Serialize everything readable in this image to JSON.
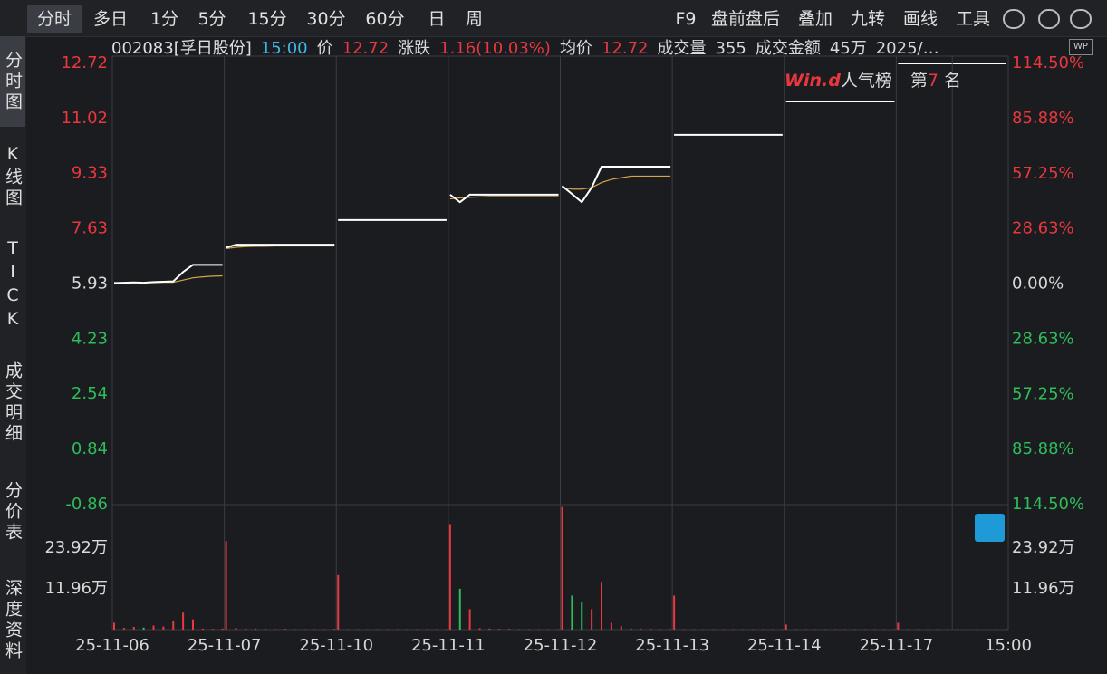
{
  "toolbar": {
    "tabs": [
      "分时",
      "多日",
      "1分",
      "5分",
      "15分",
      "30分",
      "60分",
      "日",
      "周"
    ],
    "right": [
      "F9",
      "盘前盘后",
      "叠加",
      "九转",
      "画线",
      "工具"
    ]
  },
  "side_tabs": [
    "分时图",
    "K线图",
    "TICK",
    "成交明细",
    "分价表",
    "深度资料"
  ],
  "quote": {
    "code": "002083[孚日股份]",
    "time": "15:00",
    "price_label": "价",
    "price": "12.72",
    "change_label": "涨跌",
    "change": "1.16(10.03%)",
    "avg_label": "均价",
    "avg": "12.72",
    "volume_label": "成交量",
    "volume": "355",
    "amount_label": "成交金额",
    "amount": "45万",
    "date": "2025/…"
  },
  "wp_icon": "WP",
  "ranking": {
    "logo": "Win.d",
    "label": "人气榜",
    "prefix": "第",
    "rank": "7",
    "suffix": "名"
  },
  "chart_data": {
    "type": "line",
    "ylim": [
      -0.86,
      12.72
    ],
    "yticks": [
      12.72,
      11.02,
      9.33,
      7.63,
      5.93,
      4.23,
      2.54,
      0.84,
      -0.86
    ],
    "y2lim": [
      -114.5,
      114.5
    ],
    "y2ticks": [
      {
        "value": 114.5,
        "label": "114.50%"
      },
      {
        "value": 85.88,
        "label": "85.88%"
      },
      {
        "value": 57.25,
        "label": "57.25%"
      },
      {
        "value": 28.63,
        "label": "28.63%"
      },
      {
        "value": 0,
        "label": "0.00%"
      },
      {
        "value": -28.63,
        "label": "28.63%"
      },
      {
        "value": -57.25,
        "label": "57.25%"
      },
      {
        "value": -85.88,
        "label": "85.88%"
      },
      {
        "value": -114.5,
        "label": "114.50%"
      }
    ],
    "vol_lim": [
      0,
      36.7
    ],
    "vol_ticks": [
      {
        "value": 23.92,
        "label": "23.92万"
      },
      {
        "value": 11.96,
        "label": "11.96万"
      }
    ],
    "categories": [
      "25-11-06",
      "25-11-07",
      "25-11-10",
      "25-11-11",
      "25-11-12",
      "25-11-13",
      "25-11-14",
      "25-11-17"
    ],
    "end_label": "15:00",
    "price_color": "#ffffff",
    "avg_color": "#d4a64a",
    "up_color": "#e8383d",
    "down_color": "#2ebd5a",
    "days": [
      {
        "price": [
          5.96,
          5.97,
          5.98,
          5.97,
          5.99,
          6.0,
          6.01,
          6.3,
          6.52,
          6.52,
          6.52,
          6.52
        ],
        "avg": [
          5.96,
          5.96,
          5.97,
          5.97,
          5.97,
          5.98,
          5.98,
          6.05,
          6.12,
          6.15,
          6.17,
          6.18
        ],
        "volume": [
          2.0,
          0.5,
          0.8,
          0.6,
          1.2,
          0.9,
          2.5,
          5.0,
          3.0,
          0.3,
          0.2,
          0.3
        ]
      },
      {
        "price": [
          7.05,
          7.14,
          7.14,
          7.14,
          7.14,
          7.14,
          7.14,
          7.14,
          7.14,
          7.14,
          7.14,
          7.14
        ],
        "avg": [
          7.02,
          7.06,
          7.08,
          7.09,
          7.09,
          7.1,
          7.1,
          7.1,
          7.1,
          7.1,
          7.1,
          7.1
        ],
        "volume": [
          26.0,
          0.5,
          0.2,
          0.3,
          0.2,
          0.1,
          0.2,
          0.1,
          0.1,
          0.1,
          0.1,
          0.2
        ]
      },
      {
        "price": [
          7.9,
          7.9,
          7.9,
          7.9,
          7.9,
          7.9,
          7.9,
          7.9,
          7.9,
          7.9,
          7.9,
          7.9
        ],
        "avg": [
          7.9,
          7.9,
          7.9,
          7.9,
          7.9,
          7.9,
          7.9,
          7.9,
          7.9,
          7.9,
          7.9,
          7.9
        ],
        "volume": [
          16.0,
          0.1,
          0.1,
          0.1,
          0.1,
          0.1,
          0.1,
          0.1,
          0.1,
          0.1,
          0.1,
          0.1
        ]
      },
      {
        "price": [
          8.68,
          8.45,
          8.68,
          8.68,
          8.68,
          8.68,
          8.68,
          8.68,
          8.68,
          8.68,
          8.68,
          8.68
        ],
        "avg": [
          8.55,
          8.58,
          8.6,
          8.61,
          8.62,
          8.62,
          8.62,
          8.62,
          8.62,
          8.62,
          8.62,
          8.62
        ],
        "volume": [
          31.0,
          12.0,
          6.0,
          0.4,
          0.3,
          0.2,
          0.2,
          0.1,
          0.1,
          0.1,
          0.1,
          0.1
        ]
      },
      {
        "price": [
          8.95,
          8.7,
          8.45,
          8.9,
          9.54,
          9.54,
          9.54,
          9.54,
          9.54,
          9.54,
          9.54,
          9.54
        ],
        "avg": [
          8.9,
          8.85,
          8.85,
          8.9,
          9.05,
          9.15,
          9.2,
          9.25,
          9.25,
          9.25,
          9.25,
          9.25
        ],
        "volume": [
          36.0,
          10.0,
          8.0,
          6.0,
          14.0,
          2.0,
          1.0,
          0.3,
          0.2,
          0.2,
          0.1,
          0.1
        ]
      },
      {
        "price": [
          10.52,
          10.52,
          10.52,
          10.52,
          10.52,
          10.52,
          10.52,
          10.52,
          10.52,
          10.52,
          10.52,
          10.52
        ],
        "avg": [
          10.52,
          10.52,
          10.52,
          10.52,
          10.52,
          10.52,
          10.52,
          10.52,
          10.52,
          10.52,
          10.52,
          10.52
        ],
        "volume": [
          10.0,
          0.1,
          0.1,
          0.1,
          0.1,
          0.1,
          0.1,
          0.1,
          0.1,
          0.1,
          0.1,
          0.1
        ]
      },
      {
        "price": [
          11.55,
          11.55,
          11.55,
          11.55,
          11.55,
          11.55,
          11.55,
          11.55,
          11.55,
          11.55,
          11.55,
          11.55
        ],
        "avg": [
          11.55,
          11.55,
          11.55,
          11.55,
          11.55,
          11.55,
          11.55,
          11.55,
          11.55,
          11.55,
          11.55,
          11.55
        ],
        "volume": [
          1.5,
          0.1,
          0.1,
          0.1,
          0.1,
          0.1,
          0.1,
          0.1,
          0.1,
          0.1,
          0.1,
          0.1
        ]
      },
      {
        "price": [
          12.72,
          12.72,
          12.72,
          12.72,
          12.72,
          12.72,
          12.72,
          12.72,
          12.72,
          12.72,
          12.72,
          12.72
        ],
        "avg": [
          12.72,
          12.72,
          12.72,
          12.72,
          12.72,
          12.72,
          12.72,
          12.72,
          12.72,
          12.72,
          12.72,
          12.72
        ],
        "volume": [
          2.0,
          0.1,
          0.1,
          0.1,
          0.1,
          0.1,
          0.1,
          0.1,
          0.1,
          0.1,
          0.1,
          0.1
        ]
      }
    ]
  }
}
